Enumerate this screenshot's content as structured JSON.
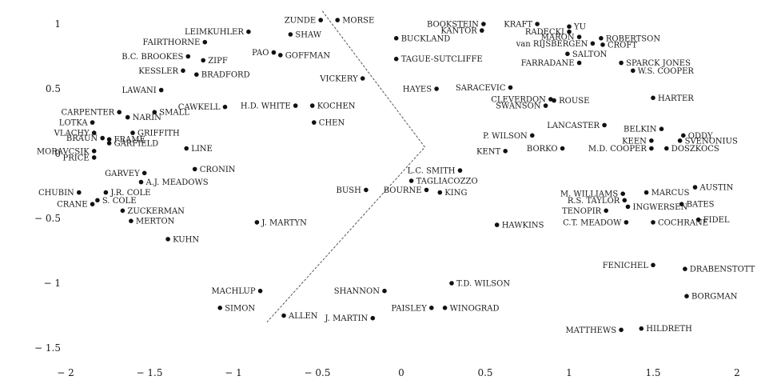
{
  "chart_data": {
    "type": "scatter",
    "title": "",
    "xlabel": "",
    "ylabel": "",
    "xlim": [
      -2.05,
      2.05
    ],
    "ylim": [
      -1.55,
      1.12
    ],
    "grid": false,
    "xticks": [
      {
        "value": -2,
        "label": "− 2"
      },
      {
        "value": -1.5,
        "label": "− 1.5"
      },
      {
        "value": -1,
        "label": "− 1"
      },
      {
        "value": -0.5,
        "label": "− 0.5"
      },
      {
        "value": 0,
        "label": "0"
      },
      {
        "value": 0.5,
        "label": "0.5"
      },
      {
        "value": 1,
        "label": "1"
      },
      {
        "value": 1.5,
        "label": "1.5"
      },
      {
        "value": 2,
        "label": "2"
      }
    ],
    "yticks": [
      {
        "value": 1,
        "label": "1"
      },
      {
        "value": 0.5,
        "label": "0.5"
      },
      {
        "value": 0,
        "label": "0"
      },
      {
        "value": -0.5,
        "label": "− 0.5"
      },
      {
        "value": -1,
        "label": "− 1"
      },
      {
        "value": -1.5,
        "label": "− 1.5"
      }
    ],
    "divider": [
      [
        -0.47,
        1.1
      ],
      [
        0.14,
        0.05
      ],
      [
        -0.8,
        -1.3
      ]
    ],
    "points": [
      {
        "label": "ZUNDE",
        "x": -0.48,
        "y": 1.03,
        "pos": "left"
      },
      {
        "label": "MORSE",
        "x": -0.38,
        "y": 1.03,
        "pos": "right"
      },
      {
        "label": "LEIMKUHLER",
        "x": -0.91,
        "y": 0.94,
        "pos": "left"
      },
      {
        "label": "SHAW",
        "x": -0.66,
        "y": 0.92,
        "pos": "right"
      },
      {
        "label": "FAIRTHORNE",
        "x": -1.17,
        "y": 0.86,
        "pos": "left"
      },
      {
        "label": "PAO",
        "x": -0.76,
        "y": 0.78,
        "pos": "left"
      },
      {
        "label": "GOFFMAN",
        "x": -0.72,
        "y": 0.76,
        "pos": "right"
      },
      {
        "label": "B.C. BROOKES",
        "x": -1.27,
        "y": 0.75,
        "pos": "left"
      },
      {
        "label": "ZIPF",
        "x": -1.18,
        "y": 0.72,
        "pos": "right"
      },
      {
        "label": "KESSLER",
        "x": -1.3,
        "y": 0.64,
        "pos": "left"
      },
      {
        "label": "BRADFORD",
        "x": -1.22,
        "y": 0.61,
        "pos": "right"
      },
      {
        "label": "VICKERY",
        "x": -0.23,
        "y": 0.58,
        "pos": "left"
      },
      {
        "label": "LAWANI",
        "x": -1.43,
        "y": 0.49,
        "pos": "left"
      },
      {
        "label": "CAWKELL",
        "x": -1.05,
        "y": 0.36,
        "pos": "left"
      },
      {
        "label": "H.D. WHITE",
        "x": -0.63,
        "y": 0.37,
        "pos": "left"
      },
      {
        "label": "KOCHEN",
        "x": -0.53,
        "y": 0.37,
        "pos": "right"
      },
      {
        "label": "SMALL",
        "x": -1.47,
        "y": 0.32,
        "pos": "right"
      },
      {
        "label": "CARPENTER",
        "x": -1.68,
        "y": 0.32,
        "pos": "left"
      },
      {
        "label": "NARIN",
        "x": -1.63,
        "y": 0.28,
        "pos": "right"
      },
      {
        "label": "CHEN",
        "x": -0.52,
        "y": 0.24,
        "pos": "right"
      },
      {
        "label": "LOTKA",
        "x": -1.84,
        "y": 0.24,
        "pos": "left"
      },
      {
        "label": "GRIFFITH",
        "x": -1.6,
        "y": 0.16,
        "pos": "right"
      },
      {
        "label": "VLACHY",
        "x": -1.83,
        "y": 0.16,
        "pos": "left"
      },
      {
        "label": "BRAUN",
        "x": -1.78,
        "y": 0.12,
        "pos": "left"
      },
      {
        "label": "FRAME",
        "x": -1.74,
        "y": 0.11,
        "pos": "right"
      },
      {
        "label": "GARFIELD",
        "x": -1.74,
        "y": 0.08,
        "pos": "right"
      },
      {
        "label": "LINE",
        "x": -1.28,
        "y": 0.04,
        "pos": "right"
      },
      {
        "label": "MORAVCSIK",
        "x": -1.83,
        "y": 0.02,
        "pos": "left"
      },
      {
        "label": "PRICE",
        "x": -1.83,
        "y": -0.03,
        "pos": "left"
      },
      {
        "label": "CRONIN",
        "x": -1.23,
        "y": -0.12,
        "pos": "right"
      },
      {
        "label": "GARVEY",
        "x": -1.53,
        "y": -0.15,
        "pos": "left"
      },
      {
        "label": "A.J. MEADOWS",
        "x": -1.55,
        "y": -0.22,
        "pos": "right"
      },
      {
        "label": "J.R. COLE",
        "x": -1.76,
        "y": -0.3,
        "pos": "right"
      },
      {
        "label": "CHUBIN",
        "x": -1.92,
        "y": -0.3,
        "pos": "left"
      },
      {
        "label": "S. COLE",
        "x": -1.81,
        "y": -0.36,
        "pos": "right"
      },
      {
        "label": "CRANE",
        "x": -1.84,
        "y": -0.39,
        "pos": "left"
      },
      {
        "label": "ZUCKERMAN",
        "x": -1.66,
        "y": -0.44,
        "pos": "right"
      },
      {
        "label": "J. MARTYN",
        "x": -0.86,
        "y": -0.53,
        "pos": "right"
      },
      {
        "label": "MERTON",
        "x": -1.61,
        "y": -0.52,
        "pos": "right"
      },
      {
        "label": "KUHN",
        "x": -1.39,
        "y": -0.66,
        "pos": "right"
      },
      {
        "label": "MACHLUP",
        "x": -0.84,
        "y": -1.06,
        "pos": "left"
      },
      {
        "label": "SIMON",
        "x": -1.08,
        "y": -1.19,
        "pos": "right"
      },
      {
        "label": "ALLEN",
        "x": -0.7,
        "y": -1.25,
        "pos": "right"
      },
      {
        "label": "BUSH",
        "x": -0.21,
        "y": -0.28,
        "pos": "left"
      },
      {
        "label": "BOOKSTEIN",
        "x": 0.49,
        "y": 1.0,
        "pos": "left"
      },
      {
        "label": "KANTOR",
        "x": 0.48,
        "y": 0.95,
        "pos": "left"
      },
      {
        "label": "BUCKLAND",
        "x": -0.03,
        "y": 0.89,
        "pos": "right"
      },
      {
        "label": "TAGUE-SUTCLIFFE",
        "x": -0.03,
        "y": 0.73,
        "pos": "right"
      },
      {
        "label": "HAYES",
        "x": 0.21,
        "y": 0.5,
        "pos": "left"
      },
      {
        "label": "SARACEVIC",
        "x": 0.65,
        "y": 0.51,
        "pos": "left"
      },
      {
        "label": "CLEVERDON",
        "x": 0.89,
        "y": 0.42,
        "pos": "left"
      },
      {
        "label": "ROUSE",
        "x": 0.91,
        "y": 0.41,
        "pos": "right"
      },
      {
        "label": "SWANSON",
        "x": 0.86,
        "y": 0.37,
        "pos": "left"
      },
      {
        "label": "P. WILSON",
        "x": 0.78,
        "y": 0.14,
        "pos": "left"
      },
      {
        "label": "BORKO",
        "x": 0.96,
        "y": 0.04,
        "pos": "left"
      },
      {
        "label": "KENT",
        "x": 0.62,
        "y": 0.02,
        "pos": "left"
      },
      {
        "label": "L.C. SMITH",
        "x": 0.35,
        "y": -0.13,
        "pos": "left"
      },
      {
        "label": "TAGLIACOZZO",
        "x": 0.06,
        "y": -0.21,
        "pos": "right"
      },
      {
        "label": "BOURNE",
        "x": 0.15,
        "y": -0.28,
        "pos": "left"
      },
      {
        "label": "KING",
        "x": 0.23,
        "y": -0.3,
        "pos": "right"
      },
      {
        "label": "HAWKINS",
        "x": 0.57,
        "y": -0.55,
        "pos": "right"
      },
      {
        "label": "T.D. WILSON",
        "x": 0.3,
        "y": -1.0,
        "pos": "right"
      },
      {
        "label": "SHANNON",
        "x": -0.1,
        "y": -1.06,
        "pos": "left"
      },
      {
        "label": "PAISLEY",
        "x": 0.18,
        "y": -1.19,
        "pos": "left"
      },
      {
        "label": "WINOGRAD",
        "x": 0.26,
        "y": -1.19,
        "pos": "right"
      },
      {
        "label": "J. MARTIN",
        "x": -0.17,
        "y": -1.27,
        "pos": "left"
      },
      {
        "label": "KRAFT",
        "x": 0.81,
        "y": 1.0,
        "pos": "left"
      },
      {
        "label": "YU",
        "x": 1.0,
        "y": 0.98,
        "pos": "right"
      },
      {
        "label": "RADECKI",
        "x": 1.0,
        "y": 0.94,
        "pos": "left"
      },
      {
        "label": "MARON",
        "x": 1.06,
        "y": 0.9,
        "pos": "left"
      },
      {
        "label": "ROBERTSON",
        "x": 1.19,
        "y": 0.89,
        "pos": "right"
      },
      {
        "label": "van RIJSBERGEN",
        "x": 1.14,
        "y": 0.85,
        "pos": "left"
      },
      {
        "label": "CROFT",
        "x": 1.2,
        "y": 0.84,
        "pos": "right"
      },
      {
        "label": "SALTON",
        "x": 0.99,
        "y": 0.77,
        "pos": "right"
      },
      {
        "label": "FARRADANE",
        "x": 1.06,
        "y": 0.7,
        "pos": "left"
      },
      {
        "label": "SPARCK JONES",
        "x": 1.31,
        "y": 0.7,
        "pos": "right"
      },
      {
        "label": "W.S. COOPER",
        "x": 1.38,
        "y": 0.64,
        "pos": "right"
      },
      {
        "label": "HARTER",
        "x": 1.5,
        "y": 0.43,
        "pos": "right"
      },
      {
        "label": "LANCASTER",
        "x": 1.21,
        "y": 0.22,
        "pos": "left"
      },
      {
        "label": "BELKIN",
        "x": 1.55,
        "y": 0.19,
        "pos": "left"
      },
      {
        "label": "ODDY",
        "x": 1.68,
        "y": 0.14,
        "pos": "right"
      },
      {
        "label": "KEEN",
        "x": 1.49,
        "y": 0.1,
        "pos": "left"
      },
      {
        "label": "SVENONIUS",
        "x": 1.66,
        "y": 0.1,
        "pos": "right"
      },
      {
        "label": "M.D. COOPER",
        "x": 1.49,
        "y": 0.04,
        "pos": "left"
      },
      {
        "label": "DOSZKOCS",
        "x": 1.58,
        "y": 0.04,
        "pos": "right"
      },
      {
        "label": "AUSTIN",
        "x": 1.75,
        "y": -0.26,
        "pos": "right"
      },
      {
        "label": "M. WILLIAMS",
        "x": 1.32,
        "y": -0.31,
        "pos": "left"
      },
      {
        "label": "MARCUS",
        "x": 1.46,
        "y": -0.3,
        "pos": "right"
      },
      {
        "label": "R.S. TAYLOR",
        "x": 1.33,
        "y": -0.36,
        "pos": "left"
      },
      {
        "label": "BATES",
        "x": 1.67,
        "y": -0.39,
        "pos": "right"
      },
      {
        "label": "TENOPIR",
        "x": 1.22,
        "y": -0.44,
        "pos": "left"
      },
      {
        "label": "INGWERSEN",
        "x": 1.35,
        "y": -0.41,
        "pos": "right"
      },
      {
        "label": "C.T. MEADOW",
        "x": 1.34,
        "y": -0.53,
        "pos": "left"
      },
      {
        "label": "COCHRANE",
        "x": 1.5,
        "y": -0.53,
        "pos": "right"
      },
      {
        "label": "FIDEL",
        "x": 1.77,
        "y": -0.51,
        "pos": "right"
      },
      {
        "label": "FENICHEL",
        "x": 1.5,
        "y": -0.86,
        "pos": "left"
      },
      {
        "label": "DRABENSTOTT",
        "x": 1.69,
        "y": -0.89,
        "pos": "right"
      },
      {
        "label": "BORGMAN",
        "x": 1.7,
        "y": -1.1,
        "pos": "right"
      },
      {
        "label": "MATTHEWS",
        "x": 1.31,
        "y": -1.36,
        "pos": "left"
      },
      {
        "label": "HILDRETH",
        "x": 1.43,
        "y": -1.35,
        "pos": "right"
      }
    ]
  }
}
